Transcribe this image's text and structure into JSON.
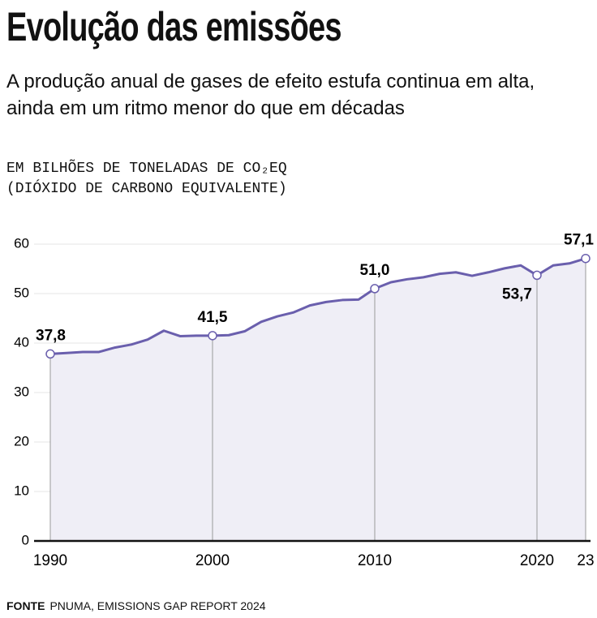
{
  "title": "Evolução das emissões",
  "subtitle": "A produção anual de gases de efeito estufa continua em alta, ainda em um ritmo menor do que em décadas",
  "unit_label": [
    "EM BILHÕES DE TONELADAS DE CO₂EQ",
    "(DIÓXIDO DE CARBONO EQUIVALENTE)"
  ],
  "source_label": "FONTE",
  "source": "PNUMA, EMISSIONS GAP REPORT 2024",
  "chart_data": {
    "type": "area",
    "x": [
      1990,
      1991,
      1992,
      1993,
      1994,
      1995,
      1996,
      1997,
      1998,
      1999,
      2000,
      2001,
      2002,
      2003,
      2004,
      2005,
      2006,
      2007,
      2008,
      2009,
      2010,
      2011,
      2012,
      2013,
      2014,
      2015,
      2016,
      2017,
      2018,
      2019,
      2020,
      2021,
      2022,
      2023
    ],
    "series": [
      {
        "name": "Emissões",
        "color": "#6a5fad",
        "values": [
          37.8,
          38.0,
          38.2,
          38.2,
          39.1,
          39.7,
          40.7,
          42.5,
          41.4,
          41.5,
          41.5,
          41.6,
          42.4,
          44.3,
          45.4,
          46.2,
          47.6,
          48.3,
          48.7,
          48.8,
          51.0,
          52.3,
          52.9,
          53.3,
          54.0,
          54.3,
          53.6,
          54.3,
          55.1,
          55.7,
          53.7,
          55.7,
          56.1,
          57.1
        ],
        "value_labels": [
          "37,8",
          null,
          null,
          null,
          null,
          null,
          null,
          null,
          null,
          null,
          "41,5",
          null,
          null,
          null,
          null,
          null,
          null,
          null,
          null,
          null,
          "51,0",
          null,
          null,
          null,
          null,
          null,
          null,
          null,
          null,
          null,
          "53,7",
          null,
          null,
          "57,1"
        ]
      }
    ],
    "fill_color": "#efeef6",
    "xlim": [
      1990,
      2023
    ],
    "xticks": [
      1990,
      2000,
      2010,
      2020,
      {
        "value": 2023,
        "label": "23"
      }
    ],
    "ylim": [
      0,
      60
    ],
    "yticks": [
      0,
      10,
      20,
      30,
      40,
      50,
      60
    ],
    "grid": true
  }
}
